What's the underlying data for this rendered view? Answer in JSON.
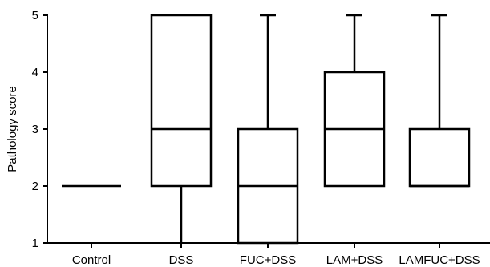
{
  "chart_data": {
    "type": "box",
    "title": "",
    "xlabel": "",
    "ylabel": "Pathology score",
    "ylim": [
      1,
      5
    ],
    "yticks": [
      1,
      2,
      3,
      4,
      5
    ],
    "grid": false,
    "legend": "none",
    "categories": [
      "Control",
      "DSS",
      "FUC+DSS",
      "LAM+DSS",
      "LAMFUC+DSS"
    ],
    "boxes": [
      {
        "category": "Control",
        "min": 2,
        "q1": 2,
        "median": 2,
        "q3": 2,
        "max": 2
      },
      {
        "category": "DSS",
        "min": 1,
        "q1": 2,
        "median": 3,
        "q3": 5,
        "max": 5
      },
      {
        "category": "FUC+DSS",
        "min": 1,
        "q1": 1,
        "median": 2,
        "q3": 3,
        "max": 5
      },
      {
        "category": "LAM+DSS",
        "min": 2,
        "q1": 2,
        "median": 3,
        "q3": 4,
        "max": 5
      },
      {
        "category": "LAMFUC+DSS",
        "min": 2,
        "q1": 2,
        "median": 2,
        "q3": 3,
        "max": 5
      }
    ],
    "colors": {
      "stroke": "#000000",
      "fill": "#ffffff"
    }
  }
}
